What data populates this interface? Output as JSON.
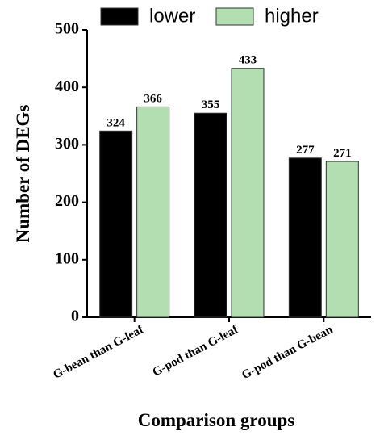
{
  "chart_data": {
    "type": "bar",
    "categories": [
      "G-bean than G-leaf",
      "G-pod than G-leaf",
      "G-pod than G-bean"
    ],
    "series": [
      {
        "name": "lower",
        "color": "#000000",
        "values": [
          324,
          355,
          277
        ]
      },
      {
        "name": "higher",
        "color": "#b3deb1",
        "values": [
          366,
          433,
          271
        ]
      }
    ],
    "xlabel": "Comparison groups",
    "ylabel": "Number of DEGs",
    "ylim": [
      0,
      500
    ],
    "yticks": [
      0,
      100,
      200,
      300,
      400,
      500
    ],
    "legend": "top"
  }
}
